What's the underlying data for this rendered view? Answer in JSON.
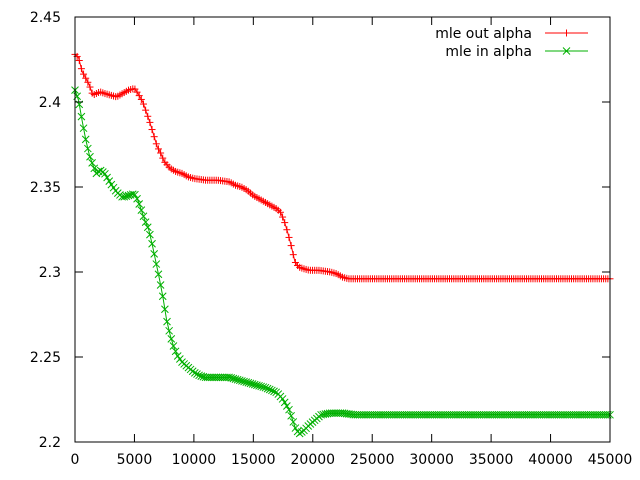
{
  "chart_data": {
    "type": "line",
    "title": "",
    "xlabel": "",
    "ylabel": "",
    "xlim": [
      0,
      45000
    ],
    "ylim": [
      2.2,
      2.45
    ],
    "xticks": [
      0,
      5000,
      10000,
      15000,
      20000,
      25000,
      30000,
      35000,
      40000,
      45000
    ],
    "yticks": [
      2.2,
      2.25,
      2.3,
      2.35,
      2.4,
      2.45
    ],
    "grid": false,
    "legend_position": "top-right",
    "series": [
      {
        "name": "mle out alpha",
        "color": "#ff0000",
        "marker": "plus",
        "x": [
          0,
          300,
          600,
          900,
          1200,
          1500,
          1800,
          2100,
          2500,
          3000,
          3500,
          4000,
          4500,
          5000,
          5300,
          5700,
          6000,
          6300,
          6600,
          6900,
          7200,
          7500,
          8000,
          8500,
          9000,
          9500,
          10000,
          11000,
          12000,
          13000,
          13500,
          14000,
          14500,
          15000,
          15500,
          16000,
          16500,
          17000,
          17300,
          17600,
          17900,
          18200,
          18500,
          18800,
          19200,
          19700,
          20500,
          21500,
          22000,
          22500,
          23000,
          45000
        ],
        "y": [
          2.428,
          2.426,
          2.418,
          2.414,
          2.41,
          2.404,
          2.405,
          2.406,
          2.405,
          2.404,
          2.403,
          2.405,
          2.407,
          2.408,
          2.405,
          2.4,
          2.394,
          2.388,
          2.381,
          2.374,
          2.37,
          2.365,
          2.361,
          2.359,
          2.358,
          2.356,
          2.355,
          2.354,
          2.354,
          2.353,
          2.351,
          2.35,
          2.348,
          2.345,
          2.343,
          2.341,
          2.339,
          2.337,
          2.335,
          2.33,
          2.323,
          2.315,
          2.306,
          2.303,
          2.302,
          2.301,
          2.301,
          2.3,
          2.299,
          2.297,
          2.296,
          2.296
        ]
      },
      {
        "name": "mle in alpha",
        "color": "#00b000",
        "marker": "cross",
        "x": [
          0,
          300,
          600,
          900,
          1200,
          1500,
          1800,
          2100,
          2500,
          3000,
          3500,
          4000,
          4500,
          5000,
          5300,
          5600,
          5900,
          6200,
          6500,
          6800,
          7100,
          7400,
          7700,
          8000,
          8300,
          8600,
          9000,
          9500,
          10000,
          10500,
          11000,
          12000,
          13000,
          14000,
          15000,
          16000,
          17000,
          17500,
          18000,
          18300,
          18600,
          18900,
          19300,
          19700,
          20200,
          20700,
          21500,
          22500,
          23500,
          45000
        ],
        "y": [
          2.407,
          2.401,
          2.389,
          2.378,
          2.369,
          2.363,
          2.358,
          2.36,
          2.358,
          2.352,
          2.347,
          2.344,
          2.345,
          2.346,
          2.342,
          2.336,
          2.33,
          2.325,
          2.316,
          2.306,
          2.296,
          2.285,
          2.272,
          2.263,
          2.256,
          2.251,
          2.247,
          2.244,
          2.241,
          2.239,
          2.238,
          2.238,
          2.238,
          2.236,
          2.234,
          2.232,
          2.229,
          2.225,
          2.219,
          2.213,
          2.207,
          2.205,
          2.207,
          2.21,
          2.213,
          2.216,
          2.217,
          2.217,
          2.216,
          2.216
        ]
      }
    ]
  }
}
